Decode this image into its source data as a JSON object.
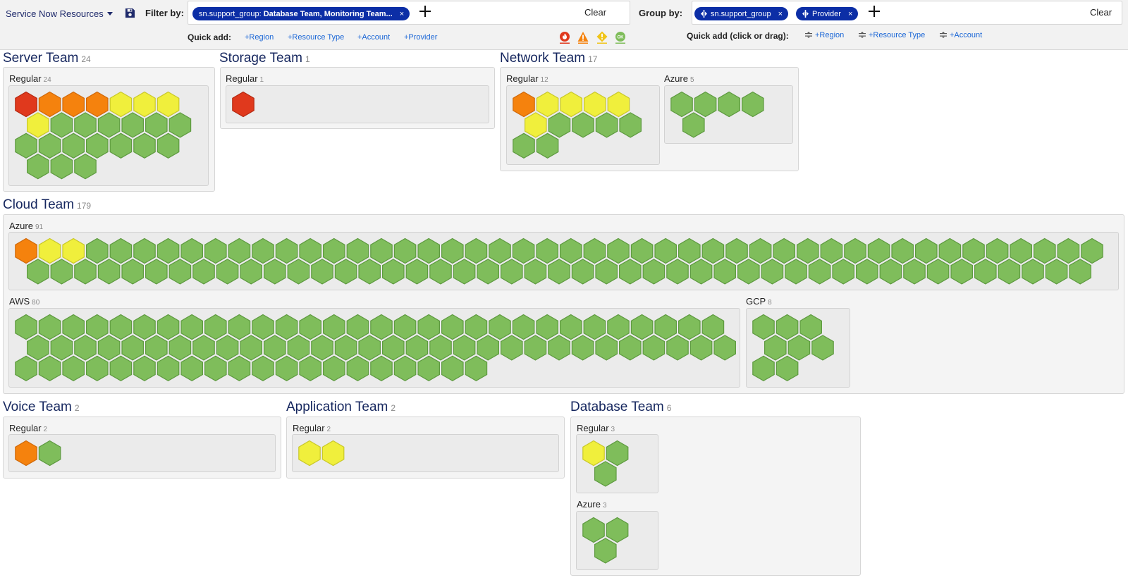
{
  "toolbar": {
    "resource_selector": "Service Now Resources",
    "filter_label": "Filter by:",
    "filter_chip_key": "sn.support_group:",
    "filter_chip_value": "Database Team, Monitoring Team...",
    "chip_close": "×",
    "filter_clear": "Clear",
    "quick_add_label": "Quick add:",
    "quick_add_filter": [
      "+Region",
      "+Resource Type",
      "+Account",
      "+Provider"
    ],
    "status_filters": [
      "critical",
      "error",
      "warning",
      "ok"
    ],
    "status_ok_text": "OK",
    "group_label": "Group by:",
    "group_chips": [
      "sn.support_group",
      "Provider"
    ],
    "group_clear": "Clear",
    "quick_add_drag_label": "Quick add (click or drag):",
    "quick_add_group": [
      "+Region",
      "+Resource Type",
      "+Account"
    ]
  },
  "colors": {
    "critical": "#e0391d",
    "error": "#f5820d",
    "warning": "#f0ef3c",
    "ok": "#7fbd5b",
    "chip": "#0c2ea6",
    "title": "#15265e",
    "link": "#1a66d6"
  },
  "teams": [
    {
      "name": "Server Team",
      "count": "24",
      "groups": [
        {
          "name": "Regular",
          "count": "24",
          "statuses": [
            "critical",
            "error",
            "error",
            "error",
            "warning",
            "warning",
            "warning",
            "warning",
            "ok",
            "ok",
            "ok",
            "ok",
            "ok",
            "ok",
            "ok",
            "ok",
            "ok",
            "ok",
            "ok",
            "ok",
            "ok",
            "ok",
            "ok",
            "ok"
          ]
        }
      ]
    },
    {
      "name": "Storage Team",
      "count": "1",
      "groups": [
        {
          "name": "Regular",
          "count": "1",
          "statuses": [
            "critical"
          ]
        }
      ]
    },
    {
      "name": "Network Team",
      "count": "17",
      "groups": [
        {
          "name": "Regular",
          "count": "12",
          "statuses": [
            "error",
            "warning",
            "warning",
            "warning",
            "warning",
            "warning",
            "ok",
            "ok",
            "ok",
            "ok",
            "ok",
            "ok"
          ]
        },
        {
          "name": "Azure",
          "count": "5",
          "statuses": [
            "ok",
            "ok",
            "ok",
            "ok",
            "ok"
          ]
        }
      ]
    },
    {
      "name": "Cloud Team",
      "count": "179",
      "groups": [
        {
          "name": "Azure",
          "count": "91",
          "statuses": [
            "error",
            "warning",
            "warning",
            "ok",
            "ok",
            "ok",
            "ok",
            "ok",
            "ok",
            "ok",
            "ok",
            "ok",
            "ok",
            "ok",
            "ok",
            "ok",
            "ok",
            "ok",
            "ok",
            "ok",
            "ok",
            "ok",
            "ok",
            "ok",
            "ok",
            "ok",
            "ok",
            "ok",
            "ok",
            "ok",
            "ok",
            "ok",
            "ok",
            "ok",
            "ok",
            "ok",
            "ok",
            "ok",
            "ok",
            "ok",
            "ok",
            "ok",
            "ok",
            "ok",
            "ok",
            "ok",
            "ok",
            "ok",
            "ok",
            "ok",
            "ok",
            "ok",
            "ok",
            "ok",
            "ok",
            "ok",
            "ok",
            "ok",
            "ok",
            "ok",
            "ok",
            "ok",
            "ok",
            "ok",
            "ok",
            "ok",
            "ok",
            "ok",
            "ok",
            "ok",
            "ok",
            "ok",
            "ok",
            "ok",
            "ok",
            "ok",
            "ok",
            "ok",
            "ok",
            "ok",
            "ok",
            "ok",
            "ok",
            "ok",
            "ok",
            "ok",
            "ok",
            "ok",
            "ok",
            "ok",
            "ok"
          ]
        },
        {
          "name": "AWS",
          "count": "80",
          "statuses": [
            "ok",
            "ok",
            "ok",
            "ok",
            "ok",
            "ok",
            "ok",
            "ok",
            "ok",
            "ok",
            "ok",
            "ok",
            "ok",
            "ok",
            "ok",
            "ok",
            "ok",
            "ok",
            "ok",
            "ok",
            "ok",
            "ok",
            "ok",
            "ok",
            "ok",
            "ok",
            "ok",
            "ok",
            "ok",
            "ok",
            "ok",
            "ok",
            "ok",
            "ok",
            "ok",
            "ok",
            "ok",
            "ok",
            "ok",
            "ok",
            "ok",
            "ok",
            "ok",
            "ok",
            "ok",
            "ok",
            "ok",
            "ok",
            "ok",
            "ok",
            "ok",
            "ok",
            "ok",
            "ok",
            "ok",
            "ok",
            "ok",
            "ok",
            "ok",
            "ok",
            "ok",
            "ok",
            "ok",
            "ok",
            "ok",
            "ok",
            "ok",
            "ok",
            "ok",
            "ok",
            "ok",
            "ok",
            "ok",
            "ok",
            "ok",
            "ok",
            "ok",
            "ok",
            "ok",
            "ok"
          ]
        },
        {
          "name": "GCP",
          "count": "8",
          "statuses": [
            "ok",
            "ok",
            "ok",
            "ok",
            "ok",
            "ok",
            "ok",
            "ok"
          ]
        }
      ]
    },
    {
      "name": "Voice Team",
      "count": "2",
      "groups": [
        {
          "name": "Regular",
          "count": "2",
          "statuses": [
            "error",
            "ok"
          ]
        }
      ]
    },
    {
      "name": "Application Team",
      "count": "2",
      "groups": [
        {
          "name": "Regular",
          "count": "2",
          "statuses": [
            "warning",
            "warning"
          ]
        }
      ]
    },
    {
      "name": "Database Team",
      "count": "6",
      "groups": [
        {
          "name": "Regular",
          "count": "3",
          "statuses": [
            "warning",
            "ok",
            "ok"
          ]
        },
        {
          "name": "Azure",
          "count": "3",
          "statuses": [
            "ok",
            "ok",
            "ok"
          ]
        }
      ]
    }
  ]
}
